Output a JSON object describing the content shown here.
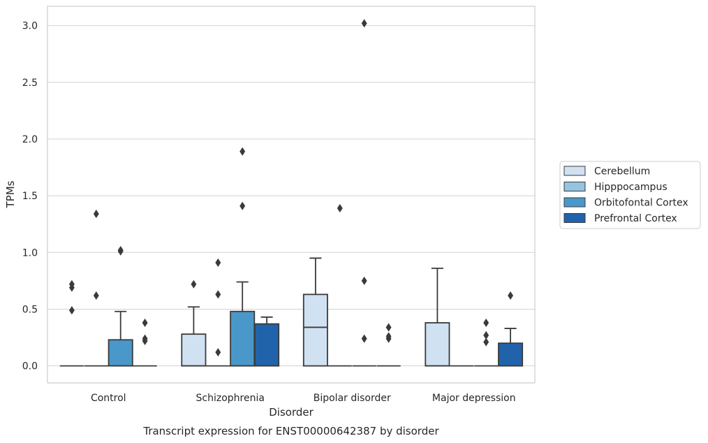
{
  "chart_data": {
    "type": "box",
    "caption": "Transcript expression for ENST00000642387 by disorder",
    "xlabel": "Disorder",
    "ylabel": "TPMs",
    "ylim": [
      -0.15,
      3.17
    ],
    "yticks": [
      0.0,
      0.5,
      1.0,
      1.5,
      2.0,
      2.5,
      3.0
    ],
    "ytick_labels": [
      "0.0",
      "0.5",
      "1.0",
      "1.5",
      "2.0",
      "2.5",
      "3.0"
    ],
    "grid": "horizontal",
    "legend_position": "right",
    "categories": [
      "Control",
      "Schizophrenia",
      "Bipolar disorder",
      "Major depression"
    ],
    "series": [
      {
        "name": "Cerebellum",
        "color": "#d0e1f2",
        "boxes": [
          {
            "q1": 0,
            "median": 0,
            "q3": 0,
            "whisker_low": 0,
            "whisker_high": 0,
            "outliers": [
              0.49,
              0.69,
              0.72
            ]
          },
          {
            "q1": 0,
            "median": 0,
            "q3": 0.28,
            "whisker_low": 0,
            "whisker_high": 0.52,
            "outliers": [
              0.72
            ]
          },
          {
            "q1": 0,
            "median": 0.34,
            "q3": 0.63,
            "whisker_low": 0,
            "whisker_high": 0.95,
            "outliers": []
          },
          {
            "q1": 0,
            "median": 0,
            "q3": 0.38,
            "whisker_low": 0,
            "whisker_high": 0.86,
            "outliers": []
          }
        ]
      },
      {
        "name": "Hipppocampus",
        "color": "#94c4df",
        "boxes": [
          {
            "q1": 0,
            "median": 0,
            "q3": 0,
            "whisker_low": 0,
            "whisker_high": 0,
            "outliers": [
              0.62,
              1.34
            ]
          },
          {
            "q1": 0,
            "median": 0,
            "q3": 0,
            "whisker_low": 0,
            "whisker_high": 0,
            "outliers": [
              0.12,
              0.63,
              0.91
            ]
          },
          {
            "q1": 0,
            "median": 0,
            "q3": 0,
            "whisker_low": 0,
            "whisker_high": 0,
            "outliers": [
              1.39
            ]
          },
          {
            "q1": 0,
            "median": 0,
            "q3": 0,
            "whisker_low": 0,
            "whisker_high": 0,
            "outliers": []
          }
        ]
      },
      {
        "name": "Orbitofontal Cortex",
        "color": "#4a98c9",
        "boxes": [
          {
            "q1": 0,
            "median": 0,
            "q3": 0.23,
            "whisker_low": 0,
            "whisker_high": 0.48,
            "outliers": [
              1.01,
              1.02
            ]
          },
          {
            "q1": 0,
            "median": 0,
            "q3": 0.48,
            "whisker_low": 0,
            "whisker_high": 0.74,
            "outliers": [
              1.41,
              1.89
            ]
          },
          {
            "q1": 0,
            "median": 0,
            "q3": 0,
            "whisker_low": 0,
            "whisker_high": 0,
            "outliers": [
              0.24,
              0.75,
              3.02
            ]
          },
          {
            "q1": 0,
            "median": 0,
            "q3": 0,
            "whisker_low": 0,
            "whisker_high": 0,
            "outliers": [
              0.21,
              0.27,
              0.38
            ]
          }
        ]
      },
      {
        "name": "Prefrontal Cortex",
        "color": "#2163aa",
        "boxes": [
          {
            "q1": 0,
            "median": 0,
            "q3": 0,
            "whisker_low": 0,
            "whisker_high": 0,
            "outliers": [
              0.22,
              0.24,
              0.38
            ]
          },
          {
            "q1": 0,
            "median": 0,
            "q3": 0.37,
            "whisker_low": 0,
            "whisker_high": 0.43,
            "outliers": []
          },
          {
            "q1": 0,
            "median": 0,
            "q3": 0,
            "whisker_low": 0,
            "whisker_high": 0,
            "outliers": [
              0.24,
              0.26,
              0.34
            ]
          },
          {
            "q1": 0,
            "median": 0,
            "q3": 0.2,
            "whisker_low": 0,
            "whisker_high": 0.33,
            "outliers": [
              0.62
            ]
          }
        ]
      }
    ],
    "colors": {
      "grid": "#d3d3d3",
      "frame": "#cccccc",
      "box_edge": "#3a3a3a",
      "text": "#262626"
    }
  }
}
